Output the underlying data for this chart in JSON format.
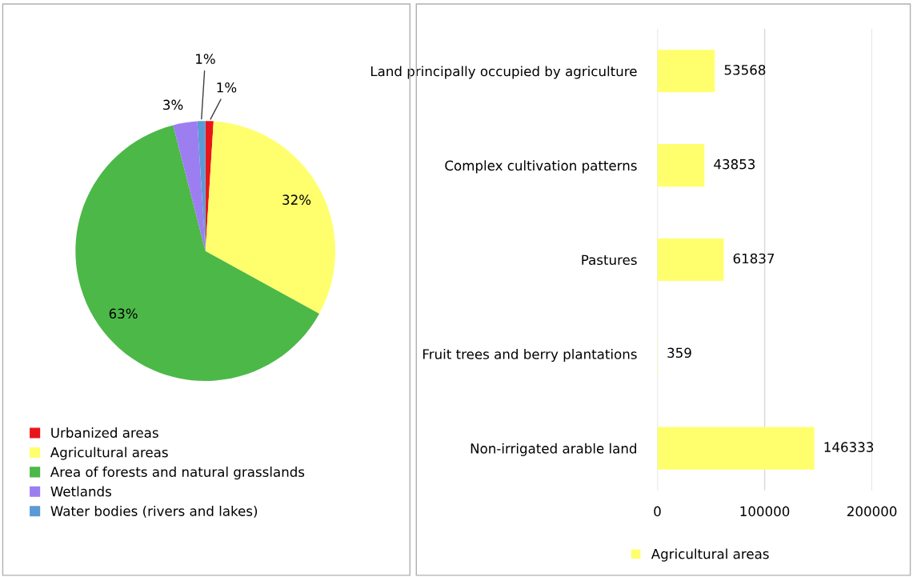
{
  "chart_data": [
    {
      "type": "pie",
      "categories": [
        "Urbanized areas",
        "Agricultural areas",
        "Area of forests and natural grasslands",
        "Wetlands",
        "Water bodies (rivers and lakes)"
      ],
      "values": [
        1,
        32,
        63,
        3,
        1
      ],
      "colors": [
        "#e8161b",
        "#ffff6e",
        "#4cb848",
        "#9c7ef0",
        "#5b9bd5"
      ],
      "value_labels": [
        "1%",
        "32%",
        "63%",
        "3%",
        "1%"
      ],
      "legend": "bottom"
    },
    {
      "type": "bar",
      "orientation": "horizontal",
      "categories": [
        "Land principally occupied by agriculture",
        "Complex cultivation patterns",
        "Pastures",
        "Fruit trees and berry plantations",
        "Non-irrigated arable land"
      ],
      "series": [
        {
          "name": "Agricultural areas",
          "color": "#ffff6e",
          "values": [
            53568,
            43853,
            61837,
            359,
            146333
          ]
        }
      ],
      "xlim": [
        0,
        200000
      ],
      "xticks": [
        0,
        100000,
        200000
      ],
      "data_labels": true,
      "grid": "x",
      "legend": "bottom"
    }
  ]
}
